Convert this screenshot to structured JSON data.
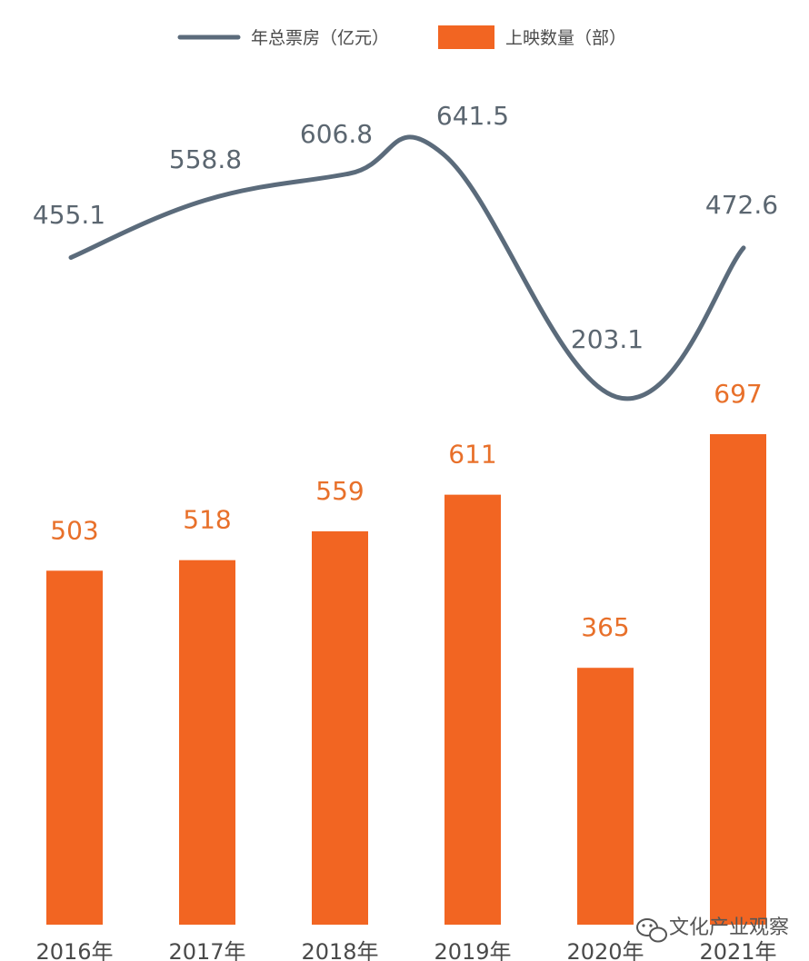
{
  "chart_data": {
    "type": "bar",
    "title": "",
    "xlabel": "",
    "ylabel": "",
    "categories": [
      "2016年",
      "2017年",
      "2018年",
      "2019年",
      "2020年",
      "2021年"
    ],
    "series": [
      {
        "name": "年总票房（亿元）",
        "type": "line",
        "color": "#5b6b7b",
        "values": [
          455.1,
          558.8,
          606.8,
          641.5,
          203.1,
          472.6
        ],
        "labels": [
          "455.1",
          "558.8",
          "606.8",
          "641.5",
          "203.1",
          "472.6"
        ]
      },
      {
        "name": "上映数量（部）",
        "type": "bar",
        "color": "#f26522",
        "values": [
          503,
          518,
          559,
          611,
          365,
          697
        ],
        "labels": [
          "503",
          "518",
          "559",
          "611",
          "365",
          "697"
        ]
      }
    ],
    "legend_position": "top-center",
    "grid": false
  },
  "watermark": {
    "text": "文化产业观察",
    "icon": "wechat-icon"
  }
}
